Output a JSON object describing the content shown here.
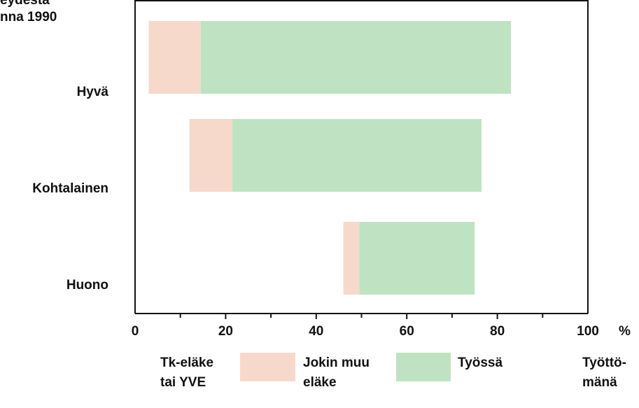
{
  "chart_data": {
    "type": "bar",
    "stacked": true,
    "orientation": "horizontal",
    "title_lines": [
      "eydestä",
      "nna 1990"
    ],
    "categories": [
      "Hyvä",
      "Kohtalainen",
      "Huono"
    ],
    "x_ticks": [
      "0",
      "20",
      "40",
      "60",
      "80",
      "100"
    ],
    "x_unit": "%",
    "xlim": [
      0,
      100
    ],
    "series": [
      {
        "name": "Tk-eläke tai YVE",
        "values": [
          3,
          12,
          46
        ],
        "color": "#ffffff",
        "legend_lines": [
          "Tk-eläke",
          "tai YVE"
        ]
      },
      {
        "name": "Jokin muu eläke",
        "values": [
          11.5,
          9.5,
          3.5
        ],
        "color": "#f6d9cb",
        "legend_lines": [
          "Jokin muu",
          "eläke"
        ]
      },
      {
        "name": "Työssä",
        "values": [
          68.5,
          55,
          25.5
        ],
        "color": "#bfe3c2",
        "legend_lines": [
          "Työssä"
        ]
      },
      {
        "name": "Työttömänä",
        "values": [
          0,
          0,
          0
        ],
        "color": "#ffffff",
        "legend_lines": [
          "Työttö-",
          "mänä"
        ]
      }
    ]
  }
}
